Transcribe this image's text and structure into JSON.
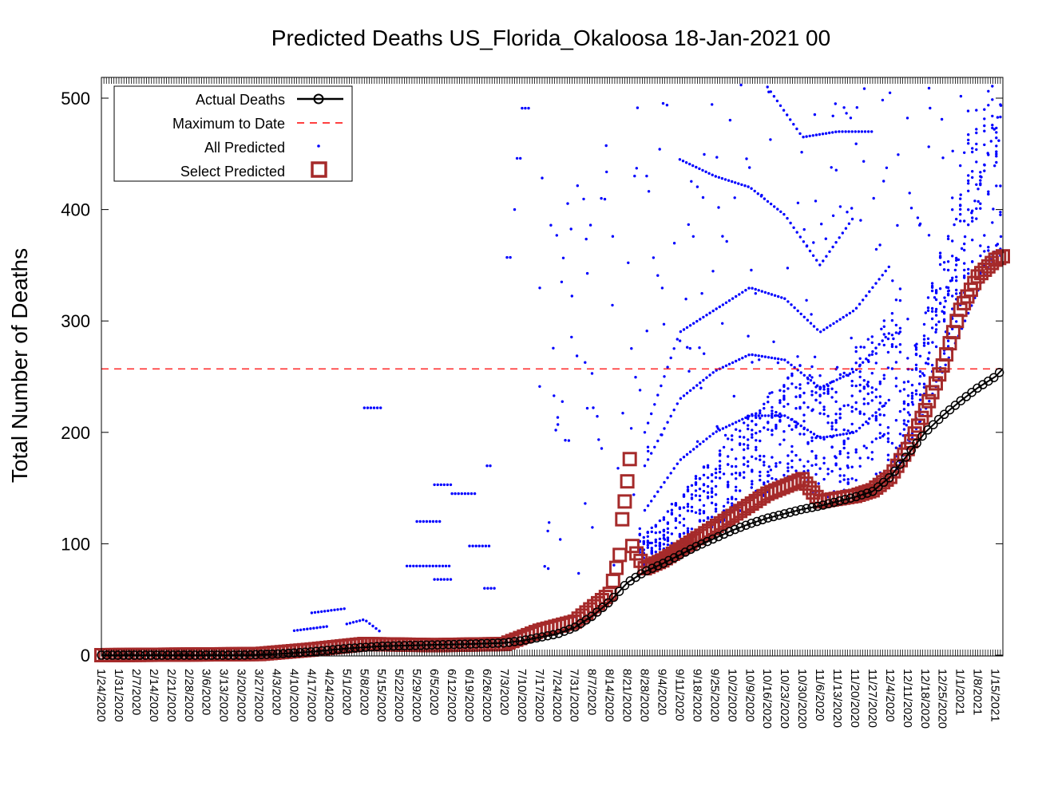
{
  "chart_data": {
    "type": "scatter",
    "title": "Predicted Deaths US_Florida_Okaloosa 18-Jan-2021 00",
    "xlabel": "",
    "ylabel": "Total Number of Deaths",
    "x_start": "1/24/2020",
    "x_end": "1/18/2021",
    "ylim": [
      0,
      520
    ],
    "yticks": [
      0,
      100,
      200,
      300,
      400,
      500
    ],
    "xtick_labels": [
      "1/24/2020",
      "1/31/2020",
      "2/7/2020",
      "2/14/2020",
      "2/21/2020",
      "2/28/2020",
      "3/6/2020",
      "3/13/2020",
      "3/20/2020",
      "3/27/2020",
      "4/3/2020",
      "4/10/2020",
      "4/17/2020",
      "4/24/2020",
      "5/1/2020",
      "5/8/2020",
      "5/15/2020",
      "5/22/2020",
      "5/29/2020",
      "6/5/2020",
      "6/12/2020",
      "6/19/2020",
      "6/26/2020",
      "7/3/2020",
      "7/10/2020",
      "7/17/2020",
      "7/24/2020",
      "7/31/2020",
      "8/7/2020",
      "8/14/2020",
      "8/21/2020",
      "8/28/2020",
      "9/4/2020",
      "9/11/2020",
      "9/18/2020",
      "9/25/2020",
      "10/2/2020",
      "10/9/2020",
      "10/16/2020",
      "10/23/2020",
      "10/30/2020",
      "11/6/2020",
      "11/13/2020",
      "11/20/2020",
      "11/27/2020",
      "12/4/2020",
      "12/11/2020",
      "12/18/2020",
      "12/25/2020",
      "1/1/2021",
      "1/8/2021",
      "1/15/2021"
    ],
    "grid": false,
    "legend_position": "top-left",
    "max_to_date": 257,
    "series": [
      {
        "name": "Actual Deaths",
        "style": "line-circle",
        "color": "#000000",
        "points": [
          [
            "1/24/2020",
            0
          ],
          [
            "3/20/2020",
            0
          ],
          [
            "4/3/2020",
            1
          ],
          [
            "4/17/2020",
            3
          ],
          [
            "5/1/2020",
            6
          ],
          [
            "5/15/2020",
            8
          ],
          [
            "6/1/2020",
            9
          ],
          [
            "6/20/2020",
            10
          ],
          [
            "7/3/2020",
            11
          ],
          [
            "7/10/2020",
            13
          ],
          [
            "7/17/2020",
            16
          ],
          [
            "7/24/2020",
            19
          ],
          [
            "7/31/2020",
            25
          ],
          [
            "8/7/2020",
            35
          ],
          [
            "8/14/2020",
            48
          ],
          [
            "8/21/2020",
            65
          ],
          [
            "8/28/2020",
            75
          ],
          [
            "9/4/2020",
            82
          ],
          [
            "9/11/2020",
            90
          ],
          [
            "9/18/2020",
            98
          ],
          [
            "9/25/2020",
            105
          ],
          [
            "10/2/2020",
            112
          ],
          [
            "10/9/2020",
            118
          ],
          [
            "10/16/2020",
            123
          ],
          [
            "10/23/2020",
            127
          ],
          [
            "10/30/2020",
            131
          ],
          [
            "11/6/2020",
            134
          ],
          [
            "11/13/2020",
            138
          ],
          [
            "11/20/2020",
            142
          ],
          [
            "11/27/2020",
            147
          ],
          [
            "12/4/2020",
            160
          ],
          [
            "12/11/2020",
            180
          ],
          [
            "12/18/2020",
            200
          ],
          [
            "12/25/2020",
            215
          ],
          [
            "1/1/2021",
            228
          ],
          [
            "1/8/2021",
            240
          ],
          [
            "1/15/2021",
            250
          ],
          [
            "1/18/2021",
            257
          ]
        ]
      },
      {
        "name": "Maximum to Date",
        "style": "dashed",
        "color": "#ff0000"
      },
      {
        "name": "All Predicted",
        "style": "dots",
        "color": "#0000ff",
        "curves": [
          [
            [
              "4/10/2020",
              22
            ],
            [
              "4/17/2020",
              24
            ],
            [
              "4/24/2020",
              26
            ]
          ],
          [
            [
              "4/17/2020",
              38
            ],
            [
              "4/24/2020",
              40
            ],
            [
              "5/1/2020",
              42
            ]
          ],
          [
            [
              "5/8/2020",
              222
            ],
            [
              "5/15/2020",
              222
            ]
          ],
          [
            [
              "5/1/2020",
              28
            ],
            [
              "5/8/2020",
              32
            ],
            [
              "5/15/2020",
              20
            ]
          ],
          [
            [
              "5/25/2020",
              80
            ],
            [
              "6/5/2020",
              80
            ],
            [
              "6/12/2020",
              80
            ]
          ],
          [
            [
              "5/29/2020",
              120
            ],
            [
              "6/8/2020",
              120
            ]
          ],
          [
            [
              "6/5/2020",
              153
            ],
            [
              "6/12/2020",
              153
            ]
          ],
          [
            [
              "6/12/2020",
              145
            ],
            [
              "6/22/2020",
              145
            ]
          ],
          [
            [
              "6/5/2020",
              68
            ],
            [
              "6/12/2020",
              68
            ]
          ],
          [
            [
              "6/19/2020",
              98
            ],
            [
              "6/28/2020",
              98
            ]
          ],
          [
            [
              "6/26/2020",
              170
            ],
            [
              "6/28/2020",
              170
            ]
          ],
          [
            [
              "6/25/2020",
              60
            ],
            [
              "6/29/2020",
              60
            ]
          ],
          [
            [
              "7/4/2020",
              357
            ],
            [
              "7/6/2020",
              357
            ]
          ],
          [
            [
              "7/7/2020",
              400
            ],
            [
              "7/8/2020",
              400
            ]
          ],
          [
            [
              "7/8/2020",
              446
            ],
            [
              "7/10/2020",
              446
            ]
          ],
          [
            [
              "7/10/2020",
              491
            ],
            [
              "7/13/2020",
              491
            ]
          ],
          [
            [
              "8/28/2020",
              130
            ],
            [
              "9/11/2020",
              175
            ],
            [
              "9/25/2020",
              200
            ],
            [
              "10/9/2020",
              215
            ],
            [
              "10/23/2020",
              215
            ],
            [
              "11/6/2020",
              195
            ],
            [
              "11/20/2020",
              200
            ],
            [
              "12/4/2020",
              230
            ]
          ],
          [
            [
              "8/28/2020",
              170
            ],
            [
              "9/11/2020",
              230
            ],
            [
              "9/25/2020",
              255
            ],
            [
              "10/9/2020",
              270
            ],
            [
              "10/23/2020",
              265
            ],
            [
              "11/6/2020",
              240
            ],
            [
              "11/20/2020",
              255
            ],
            [
              "12/4/2020",
              290
            ]
          ],
          [
            [
              "8/28/2020",
              200
            ],
            [
              "9/11/2020",
              290
            ],
            [
              "9/25/2020",
              310
            ],
            [
              "10/9/2020",
              330
            ],
            [
              "10/23/2020",
              320
            ],
            [
              "11/6/2020",
              290
            ],
            [
              "11/20/2020",
              310
            ],
            [
              "12/4/2020",
              350
            ]
          ],
          [
            [
              "9/11/2020",
              445
            ],
            [
              "9/25/2020",
              430
            ],
            [
              "10/9/2020",
              420
            ],
            [
              "10/23/2020",
              395
            ],
            [
              "11/6/2020",
              350
            ],
            [
              "11/20/2020",
              395
            ]
          ],
          [
            [
              "10/16/2020",
              510
            ],
            [
              "10/30/2020",
              465
            ],
            [
              "11/13/2020",
              470
            ],
            [
              "11/27/2020",
              470
            ]
          ],
          [
            [
              "12/4/2020",
              160
            ],
            [
              "12/18/2020",
              260
            ],
            [
              "1/1/2021",
              360
            ],
            [
              "1/18/2021",
              500
            ]
          ],
          [
            [
              "12/4/2020",
              155
            ],
            [
              "12/18/2020",
              220
            ],
            [
              "1/1/2021",
              290
            ],
            [
              "1/18/2021",
              380
            ]
          ]
        ]
      },
      {
        "name": "Select Predicted",
        "style": "squares",
        "color": "#a52a2a",
        "points": [
          [
            "1/24/2020",
            0
          ],
          [
            "3/27/2020",
            1
          ],
          [
            "4/17/2020",
            5
          ],
          [
            "5/8/2020",
            10
          ],
          [
            "6/5/2020",
            9
          ],
          [
            "7/3/2020",
            10
          ],
          [
            "7/17/2020",
            22
          ],
          [
            "7/31/2020",
            30
          ],
          [
            "8/14/2020",
            55
          ],
          [
            "8/18/2020",
            90
          ],
          [
            "8/19/2020",
            122
          ],
          [
            "8/20/2020",
            138
          ],
          [
            "8/21/2020",
            156
          ],
          [
            "8/22/2020",
            176
          ],
          [
            "8/23/2020",
            98
          ],
          [
            "8/28/2020",
            78
          ],
          [
            "9/4/2020",
            85
          ],
          [
            "9/11/2020",
            95
          ],
          [
            "9/18/2020",
            105
          ],
          [
            "10/2/2020",
            125
          ],
          [
            "10/16/2020",
            145
          ],
          [
            "10/30/2020",
            158
          ],
          [
            "11/6/2020",
            138
          ],
          [
            "11/20/2020",
            143
          ],
          [
            "11/27/2020",
            148
          ],
          [
            "12/4/2020",
            160
          ],
          [
            "12/11/2020",
            185
          ],
          [
            "12/18/2020",
            220
          ],
          [
            "12/25/2020",
            260
          ],
          [
            "1/1/2021",
            310
          ],
          [
            "1/8/2021",
            340
          ],
          [
            "1/15/2021",
            355
          ],
          [
            "1/18/2021",
            358
          ]
        ]
      }
    ]
  }
}
